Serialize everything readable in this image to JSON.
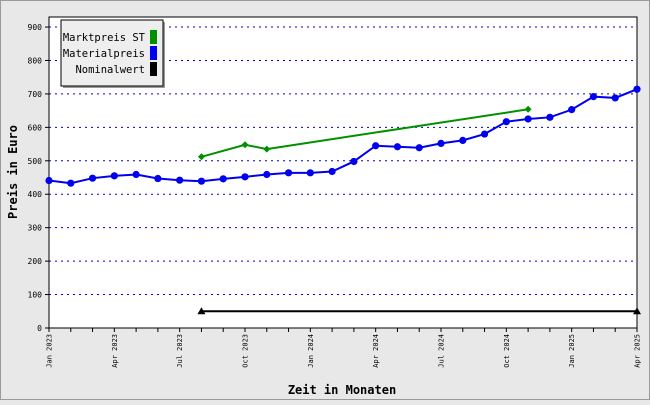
{
  "chart_data": {
    "type": "line",
    "title": "",
    "xlabel": "Zeit in Monaten",
    "ylabel": "Preis in Euro",
    "ylim": [
      0,
      930
    ],
    "y_ticks": [
      0,
      100,
      200,
      300,
      400,
      500,
      600,
      700,
      800,
      900
    ],
    "x": [
      "Jan 2023",
      "Feb 2023",
      "Mar 2023",
      "Apr 2023",
      "May 2023",
      "Jun 2023",
      "Jul 2023",
      "Aug 2023",
      "Sep 2023",
      "Oct 2023",
      "Nov 2023",
      "Dec 2023",
      "Jan 2024",
      "Feb 2024",
      "Mar 2024",
      "Apr 2024",
      "May 2024",
      "Jun 2024",
      "Jul 2024",
      "Aug 2024",
      "Sep 2024",
      "Oct 2024",
      "Nov 2024",
      "Dec 2024",
      "Jan 2025",
      "Feb 2025",
      "Mar 2025",
      "Apr 2025"
    ],
    "x_tick_labels": [
      {
        "index": 0,
        "label": "Jan 2023"
      },
      {
        "index": 3,
        "label": "Apr 2023"
      },
      {
        "index": 6,
        "label": "Jul 2023"
      },
      {
        "index": 9,
        "label": "Oct 2023"
      },
      {
        "index": 12,
        "label": "Jan 2024"
      },
      {
        "index": 15,
        "label": "Apr 2024"
      },
      {
        "index": 18,
        "label": "Jul 2024"
      },
      {
        "index": 21,
        "label": "Oct 2024"
      },
      {
        "index": 24,
        "label": "Jan 2025"
      },
      {
        "index": 27,
        "label": "Apr 2025"
      }
    ],
    "grid": true,
    "legend_position": "top-left",
    "series": [
      {
        "name": "Marktpreis ST",
        "color": "#009000",
        "marker": "diamond",
        "points": [
          [
            7,
            512
          ],
          [
            9,
            548
          ],
          [
            10,
            535
          ],
          [
            22,
            654
          ]
        ]
      },
      {
        "name": "Materialpreis",
        "color": "#0000ee",
        "marker": "circle",
        "points": [
          [
            0,
            441
          ],
          [
            1,
            433
          ],
          [
            2,
            448
          ],
          [
            3,
            455
          ],
          [
            4,
            459
          ],
          [
            5,
            447
          ],
          [
            6,
            442
          ],
          [
            7,
            439
          ],
          [
            8,
            446
          ],
          [
            9,
            452
          ],
          [
            10,
            459
          ],
          [
            11,
            464
          ],
          [
            12,
            464
          ],
          [
            13,
            468
          ],
          [
            14,
            498
          ],
          [
            15,
            545
          ],
          [
            16,
            542
          ],
          [
            17,
            539
          ],
          [
            18,
            552
          ],
          [
            19,
            561
          ],
          [
            20,
            580
          ],
          [
            21,
            617
          ],
          [
            22,
            625
          ],
          [
            23,
            630
          ],
          [
            24,
            653
          ],
          [
            25,
            692
          ],
          [
            26,
            688
          ],
          [
            27,
            714
          ]
        ]
      },
      {
        "name": "Nominalwert",
        "color": "#000000",
        "marker": "triangle",
        "points": [
          [
            7,
            50
          ],
          [
            27,
            50
          ]
        ]
      }
    ]
  }
}
